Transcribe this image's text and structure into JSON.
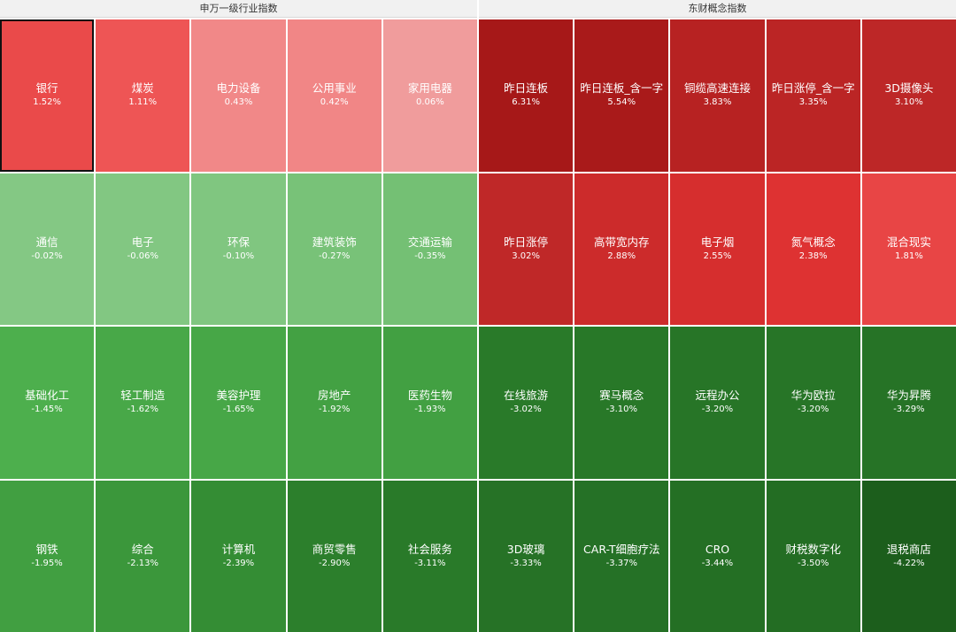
{
  "panels": [
    {
      "title": "申万一级行业指数",
      "tiles": [
        {
          "name": "银行",
          "pct": "1.52%",
          "color": "#ea4a4a",
          "selected": true
        },
        {
          "name": "煤炭",
          "pct": "1.11%",
          "color": "#ee5555"
        },
        {
          "name": "电力设备",
          "pct": "0.43%",
          "color": "#f18888"
        },
        {
          "name": "公用事业",
          "pct": "0.42%",
          "color": "#f18686"
        },
        {
          "name": "家用电器",
          "pct": "0.06%",
          "color": "#f09c9c"
        },
        {
          "name": "通信",
          "pct": "-0.02%",
          "color": "#84c884"
        },
        {
          "name": "电子",
          "pct": "-0.06%",
          "color": "#82c782"
        },
        {
          "name": "环保",
          "pct": "-0.10%",
          "color": "#80c680"
        },
        {
          "name": "建筑装饰",
          "pct": "-0.27%",
          "color": "#78c278"
        },
        {
          "name": "交通运输",
          "pct": "-0.35%",
          "color": "#74c074"
        },
        {
          "name": "基础化工",
          "pct": "-1.45%",
          "color": "#4daf4d"
        },
        {
          "name": "轻工制造",
          "pct": "-1.62%",
          "color": "#48a848"
        },
        {
          "name": "美容护理",
          "pct": "-1.65%",
          "color": "#47a747"
        },
        {
          "name": "房地产",
          "pct": "-1.92%",
          "color": "#43a143"
        },
        {
          "name": "医药生物",
          "pct": "-1.93%",
          "color": "#42a042"
        },
        {
          "name": "钢铁",
          "pct": "-1.95%",
          "color": "#419f41"
        },
        {
          "name": "综合",
          "pct": "-2.13%",
          "color": "#3b973b"
        },
        {
          "name": "计算机",
          "pct": "-2.39%",
          "color": "#348d34"
        },
        {
          "name": "商贸零售",
          "pct": "-2.90%",
          "color": "#2c7f2c"
        },
        {
          "name": "社会服务",
          "pct": "-3.11%",
          "color": "#297a29"
        }
      ]
    },
    {
      "title": "东财概念指数",
      "tiles": [
        {
          "name": "昨日连板",
          "pct": "6.31%",
          "color": "#a61818"
        },
        {
          "name": "昨日连板_含一字",
          "pct": "5.54%",
          "color": "#a91a1a"
        },
        {
          "name": "铜缆高速连接",
          "pct": "3.83%",
          "color": "#b72222"
        },
        {
          "name": "昨日涨停_含一字",
          "pct": "3.35%",
          "color": "#bb2525"
        },
        {
          "name": "3D摄像头",
          "pct": "3.10%",
          "color": "#bd2727"
        },
        {
          "name": "昨日涨停",
          "pct": "3.02%",
          "color": "#bf2828"
        },
        {
          "name": "高带宽内存",
          "pct": "2.88%",
          "color": "#cc2b2b"
        },
        {
          "name": "电子烟",
          "pct": "2.55%",
          "color": "#d62e2e"
        },
        {
          "name": "氮气概念",
          "pct": "2.38%",
          "color": "#de3232"
        },
        {
          "name": "混合现实",
          "pct": "1.81%",
          "color": "#e84545"
        },
        {
          "name": "在线旅游",
          "pct": "-3.02%",
          "color": "#297a29"
        },
        {
          "name": "赛马概念",
          "pct": "-3.10%",
          "color": "#287828"
        },
        {
          "name": "远程办公",
          "pct": "-3.20%",
          "color": "#277527"
        },
        {
          "name": "华为欧拉",
          "pct": "-3.20%",
          "color": "#277527"
        },
        {
          "name": "华为昇腾",
          "pct": "-3.29%",
          "color": "#267326"
        },
        {
          "name": "3D玻璃",
          "pct": "-3.33%",
          "color": "#267226"
        },
        {
          "name": "CAR-T细胞疗法",
          "pct": "-3.37%",
          "color": "#257126"
        },
        {
          "name": "CRO",
          "pct": "-3.44%",
          "color": "#246f24"
        },
        {
          "name": "财税数字化",
          "pct": "-3.50%",
          "color": "#236d23"
        },
        {
          "name": "退税商店",
          "pct": "-4.22%",
          "color": "#1c5e1c"
        }
      ]
    }
  ]
}
